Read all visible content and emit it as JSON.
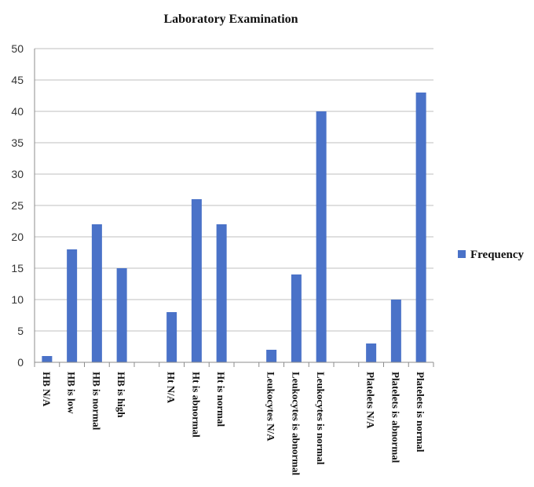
{
  "chart_data": {
    "type": "bar",
    "title": "Laboratory Examination",
    "xlabel": "",
    "ylabel": "",
    "ylim": [
      0,
      50
    ],
    "yticks": [
      0,
      5,
      10,
      15,
      20,
      25,
      30,
      35,
      40,
      45,
      50
    ],
    "grid": true,
    "legend": "right",
    "color": "#4a72c8",
    "categories": [
      "HB N/A",
      "HB is low",
      "HB is normal",
      "HB is high",
      "",
      "Ht N/A",
      "Ht is abnormal",
      "Ht is normal",
      "",
      "Leukocytes N/A",
      "Leukocytes is abnormal",
      "Leukocytes is normal",
      "",
      "Platelets N/A",
      "Platelets is abnormal",
      "Platelets is normal"
    ],
    "series": [
      {
        "name": "Frequency",
        "values": [
          1,
          18,
          22,
          15,
          null,
          8,
          26,
          22,
          null,
          2,
          14,
          40,
          null,
          3,
          10,
          43
        ]
      }
    ]
  }
}
